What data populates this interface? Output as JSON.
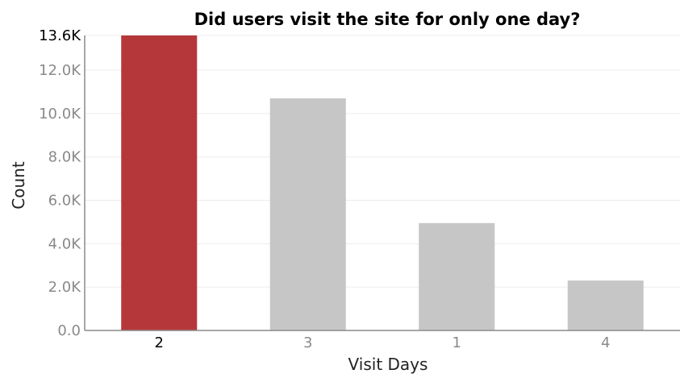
{
  "chart_data": {
    "type": "bar",
    "title": "Did users visit the site for only one day?",
    "xlabel": "Visit Days",
    "ylabel": "Count",
    "categories": [
      "2",
      "3",
      "1",
      "4"
    ],
    "values": [
      13600,
      10700,
      4950,
      2300
    ],
    "highlight_index": 0,
    "colors": {
      "highlight": "#b5373a",
      "default": "#c6c6c6",
      "axis": "#8a8a8a",
      "tick_text_muted": "#8a8a8a",
      "tick_text_emphasis": "#000000",
      "grid": "#ebebeb"
    },
    "ylim": [
      0,
      13600
    ],
    "yticks": [
      {
        "value": 0,
        "label": "0.0"
      },
      {
        "value": 2000,
        "label": "2.0K"
      },
      {
        "value": 4000,
        "label": "4.0K"
      },
      {
        "value": 6000,
        "label": "6.0K"
      },
      {
        "value": 8000,
        "label": "8.0K"
      },
      {
        "value": 10000,
        "label": "10.0K"
      },
      {
        "value": 12000,
        "label": "12.0K"
      },
      {
        "value": 13600,
        "label": "13.6K"
      }
    ],
    "emphasized_ytick": "13.6K",
    "grid": true,
    "legend": "none"
  }
}
